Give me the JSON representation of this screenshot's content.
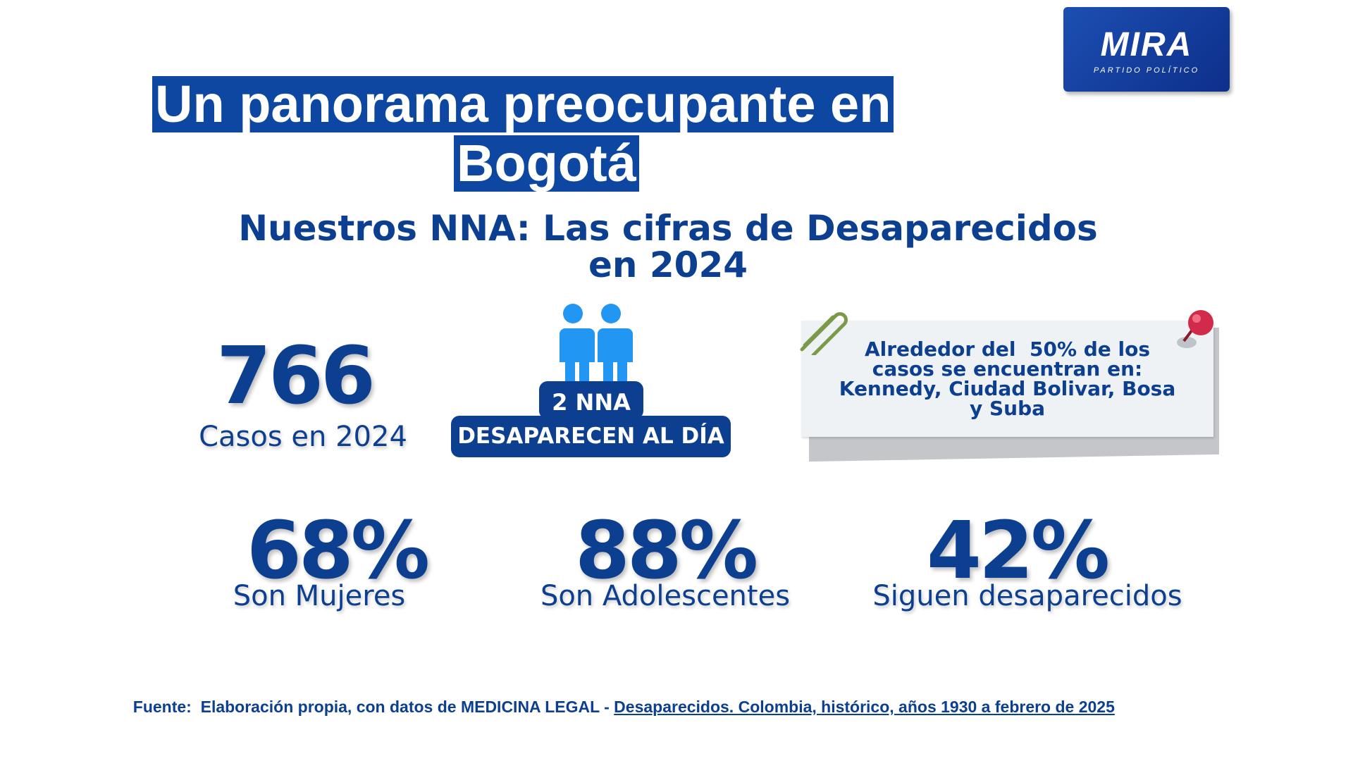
{
  "logo": {
    "name": "MIRA",
    "tagline": "PARTIDO POLÍTICO"
  },
  "title": {
    "lines": [
      "Un panorama preocupante en",
      "Bogotá"
    ]
  },
  "subtitle": {
    "lines": [
      "Nuestros NNA: Las cifras de Desaparecidos",
      "en 2024"
    ]
  },
  "cases": {
    "number": "766",
    "label": "Casos en 2024"
  },
  "daily": {
    "count": "2 NNA",
    "label": "DESAPARECEN AL DÍA"
  },
  "note": {
    "lines": [
      "Alrededor del  50% de los",
      "casos se encuentran en:",
      "Kennedy, Ciudad Bolivar, Bosa",
      "y Suba"
    ]
  },
  "stats": [
    {
      "number": "68%",
      "label": "Son Mujeres"
    },
    {
      "number": "88%",
      "label": "Son Adolescentes"
    },
    {
      "number": "42%",
      "label": "Siguen desaparecidos"
    }
  ],
  "source": {
    "prefix": "Fuente:  Elaboración propia, con datos de MEDICINA LEGAL - ",
    "link": "Desaparecidos. Colombia, histórico, años 1930 a febrero de 2025"
  }
}
